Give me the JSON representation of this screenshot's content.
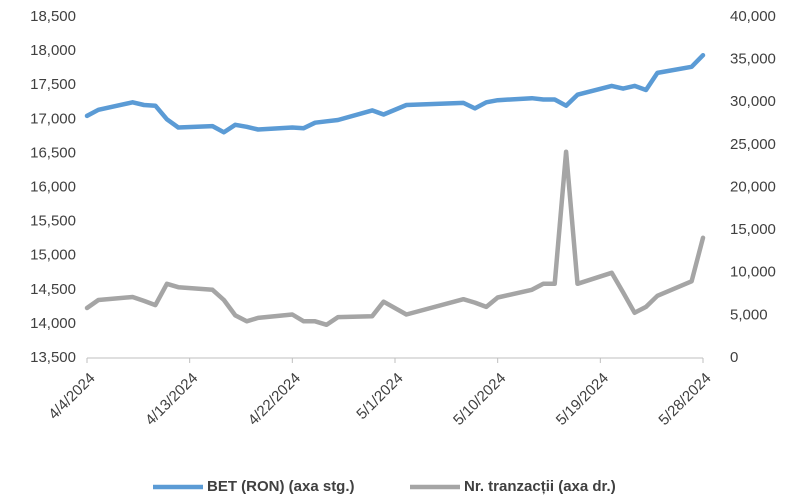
{
  "chart_data": {
    "type": "line",
    "x": [
      "4/4/2024",
      "4/5/2024",
      "4/8/2024",
      "4/9/2024",
      "4/10/2024",
      "4/11/2024",
      "4/12/2024",
      "4/15/2024",
      "4/16/2024",
      "4/17/2024",
      "4/18/2024",
      "4/19/2024",
      "4/22/2024",
      "4/23/2024",
      "4/24/2024",
      "4/25/2024",
      "4/26/2024",
      "4/29/2024",
      "4/30/2024",
      "5/2/2024",
      "5/7/2024",
      "5/8/2024",
      "5/9/2024",
      "5/10/2024",
      "5/13/2024",
      "5/14/2024",
      "5/15/2024",
      "5/16/2024",
      "5/17/2024",
      "5/20/2024",
      "5/21/2024",
      "5/22/2024",
      "5/23/2024",
      "5/24/2024",
      "5/27/2024",
      "5/28/2024"
    ],
    "series": [
      {
        "name": "BET (RON) (axa stg.)",
        "color": "#5b9bd5",
        "axis": "y",
        "values": [
          17050,
          17140,
          17250,
          17210,
          17200,
          17000,
          16880,
          16900,
          16810,
          16920,
          16890,
          16850,
          16880,
          16870,
          16950,
          16970,
          16990,
          17130,
          17070,
          17210,
          17240,
          17160,
          17250,
          17280,
          17310,
          17290,
          17290,
          17200,
          17360,
          17490,
          17450,
          17490,
          17430,
          17680,
          17770,
          17940
        ]
      },
      {
        "name": "Nr. tranzacții (axa dr.)",
        "color": "#a5a5a5",
        "axis": "y2",
        "values": [
          5860,
          6800,
          7150,
          6700,
          6200,
          8700,
          8300,
          8000,
          6800,
          5000,
          4300,
          4700,
          5100,
          4300,
          4300,
          3900,
          4800,
          4900,
          6600,
          5100,
          6900,
          6500,
          6000,
          7100,
          8000,
          8700,
          8700,
          24200,
          8700,
          10000,
          7700,
          5300,
          6000,
          7300,
          9000,
          14100
        ]
      }
    ],
    "xlim": [
      "4/4/2024",
      "5/28/2024"
    ],
    "xticks": [
      "4/4/2024",
      "4/13/2024",
      "4/22/2024",
      "5/1/2024",
      "5/10/2024",
      "5/19/2024",
      "5/28/2024"
    ],
    "ylim": [
      13500,
      18500
    ],
    "yticks": [
      {
        "value": 13500,
        "label": "13,500"
      },
      {
        "value": 14000,
        "label": "14,000"
      },
      {
        "value": 14500,
        "label": "14,500"
      },
      {
        "value": 15000,
        "label": "15,000"
      },
      {
        "value": 15500,
        "label": "15,500"
      },
      {
        "value": 16000,
        "label": "16,000"
      },
      {
        "value": 16500,
        "label": "16,500"
      },
      {
        "value": 17000,
        "label": "17,000"
      },
      {
        "value": 17500,
        "label": "17,500"
      },
      {
        "value": 18000,
        "label": "18,000"
      },
      {
        "value": 18500,
        "label": "18,500"
      }
    ],
    "y2lim": [
      0,
      40000
    ],
    "y2ticks": [
      0,
      {
        "value": 5000,
        "label": "5,000"
      },
      {
        "value": 10000,
        "label": "10,000"
      },
      {
        "value": 15000,
        "label": "15,000"
      },
      {
        "value": 20000,
        "label": "20,000"
      },
      {
        "value": 25000,
        "label": "25,000"
      },
      {
        "value": 30000,
        "label": "30,000"
      },
      {
        "value": 35000,
        "label": "35,000"
      },
      {
        "value": 40000,
        "label": "40,000"
      }
    ],
    "grid": false,
    "legend": "bottom"
  }
}
